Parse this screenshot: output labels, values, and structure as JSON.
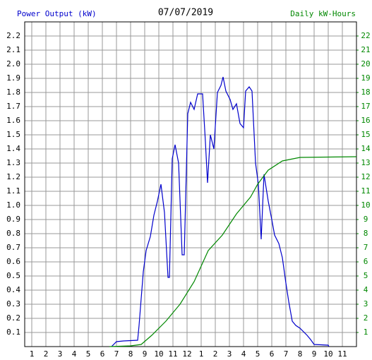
{
  "chart_data": {
    "type": "line",
    "title": "07/07/2019",
    "ylabel": "Power Output (kW)",
    "y2label": "Daily kW-Hours",
    "xlim": [
      0.5,
      24
    ],
    "ylim": [
      0,
      2.3
    ],
    "y2lim": [
      0,
      23
    ],
    "grid": true,
    "xticks": [
      1,
      2,
      3,
      4,
      5,
      6,
      7,
      8,
      9,
      10,
      11,
      12,
      {
        "value": 13,
        "label": "1"
      },
      {
        "value": 14,
        "label": "2"
      },
      {
        "value": 15,
        "label": "3"
      },
      {
        "value": 16,
        "label": "4"
      },
      {
        "value": 17,
        "label": "5"
      },
      {
        "value": 18,
        "label": "6"
      },
      {
        "value": 19,
        "label": "7"
      },
      {
        "value": 20,
        "label": "8"
      },
      {
        "value": 21,
        "label": "9"
      },
      {
        "value": 22,
        "label": "10"
      },
      {
        "value": 23,
        "label": "11"
      }
    ],
    "yticks": [
      0.1,
      0.2,
      0.3,
      0.4,
      0.5,
      0.6,
      0.7,
      0.8,
      0.9,
      {
        "value": 1,
        "label": "1.0"
      },
      1.1,
      1.2,
      1.3,
      1.4,
      1.5,
      1.6,
      1.7,
      1.8,
      1.9,
      {
        "value": 2,
        "label": "2.0"
      },
      2.1,
      2.2
    ],
    "y2ticks": [
      1,
      2,
      3,
      4,
      5,
      6,
      7,
      8,
      9,
      10,
      11,
      12,
      13,
      14,
      15,
      16,
      17,
      18,
      19,
      20,
      21,
      22
    ],
    "series": [
      {
        "color": "#0000cc",
        "axis": "y",
        "x": [
          6.65,
          7.0,
          7.5,
          8.5,
          8.6,
          8.9,
          9.1,
          9.4,
          9.65,
          9.9,
          10.15,
          10.4,
          10.65,
          10.75,
          10.95,
          11.15,
          11.4,
          11.65,
          11.8,
          12.05,
          12.25,
          12.5,
          12.75,
          13.1,
          13.3,
          13.45,
          13.65,
          13.9,
          14.15,
          14.4,
          14.55,
          14.75,
          15.05,
          15.25,
          15.5,
          15.75,
          16.0,
          16.15,
          16.4,
          16.6,
          16.85,
          17.05,
          17.25,
          17.45,
          17.75,
          18.0,
          18.2,
          18.5,
          18.75,
          19.0,
          19.2,
          19.45,
          19.7,
          20.0,
          20.5,
          20.75,
          21.0,
          22.0,
          22.05
        ],
        "values": [
          0,
          0.035,
          0.04,
          0.045,
          0.15,
          0.53,
          0.68,
          0.78,
          0.93,
          1.03,
          1.15,
          0.95,
          0.49,
          0.49,
          1.33,
          1.43,
          1.3,
          0.65,
          0.65,
          1.65,
          1.73,
          1.68,
          1.79,
          1.79,
          1.45,
          1.16,
          1.5,
          1.4,
          1.8,
          1.85,
          1.91,
          1.81,
          1.75,
          1.68,
          1.72,
          1.58,
          1.55,
          1.81,
          1.84,
          1.81,
          1.3,
          1.15,
          0.76,
          1.22,
          1.03,
          0.9,
          0.79,
          0.73,
          0.63,
          0.45,
          0.32,
          0.18,
          0.15,
          0.13,
          0.08,
          0.05,
          0.015,
          0.01,
          0
        ]
      },
      {
        "color": "#008800",
        "axis": "y2",
        "x": [
          6.5,
          8,
          8.75,
          9.5,
          10.5,
          11.5,
          12.5,
          13.5,
          14.5,
          15.5,
          16.5,
          17,
          17.75,
          18.75,
          20,
          24
        ],
        "values": [
          0,
          0.05,
          0.15,
          0.8,
          1.8,
          3.0,
          4.6,
          6.8,
          7.9,
          9.4,
          10.6,
          11.5,
          12.5,
          13.15,
          13.4,
          13.45
        ]
      }
    ]
  }
}
